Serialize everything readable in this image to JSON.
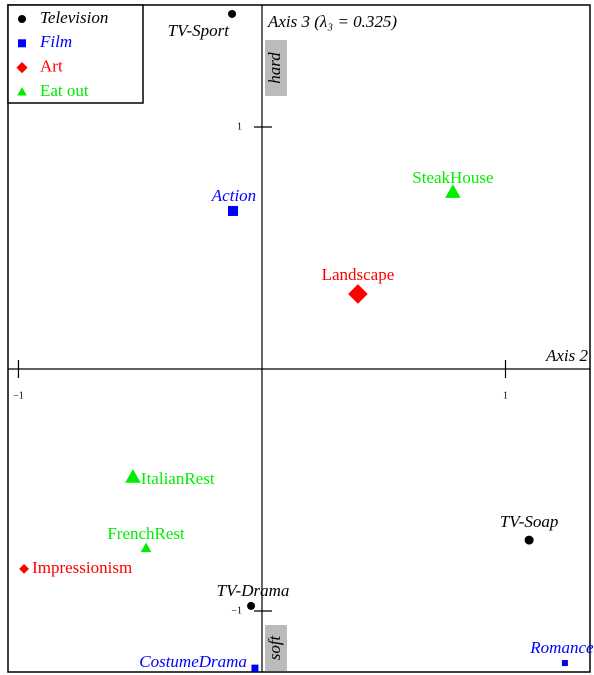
{
  "chart_data": {
    "type": "scatter",
    "y_axis_label": "Axis 3 (λ₃ = 0.325)",
    "x_axis_label": "Axis 2",
    "annotations": [
      "hard",
      "soft"
    ],
    "xlim": [
      -1.043,
      1.347
    ],
    "ylim": [
      -1.252,
      1.504
    ],
    "xticks": [
      {
        "value": -1,
        "label": "−1"
      },
      1
    ],
    "yticks": [
      1,
      {
        "value": -1,
        "label": "−1"
      }
    ],
    "legend": "top-left",
    "series": [
      {
        "name": "Television",
        "color": "#000000",
        "marker": "circle",
        "italic": true,
        "labels": [
          "TV-Sport",
          "TV-Drama",
          "TV-Soap"
        ],
        "x": [
          -0.123,
          -0.045,
          1.097
        ],
        "values": [
          1.467,
          -0.979,
          -0.707
        ]
      },
      {
        "name": "Film",
        "color": "#0000ff",
        "marker": "square",
        "italic": true,
        "labels": [
          "Action",
          "CostumeDrama",
          "Romance"
        ],
        "x": [
          -0.119,
          -0.029,
          1.244
        ],
        "values": [
          0.653,
          -1.236,
          -1.215
        ]
      },
      {
        "name": "Art",
        "color": "#ff0000",
        "marker": "diamond",
        "italic": false,
        "labels": [
          "Landscape",
          "Impressionism"
        ],
        "x": [
          0.394,
          -0.977
        ],
        "values": [
          0.31,
          -0.826
        ]
      },
      {
        "name": "Eat out",
        "color": "#00ee00",
        "marker": "triangle",
        "italic": false,
        "labels": [
          "SteakHouse",
          "ItalianRest",
          "FrenchRest"
        ],
        "x": [
          0.784,
          -0.53,
          -0.476
        ],
        "values": [
          0.731,
          -0.446,
          -0.74
        ]
      }
    ]
  }
}
